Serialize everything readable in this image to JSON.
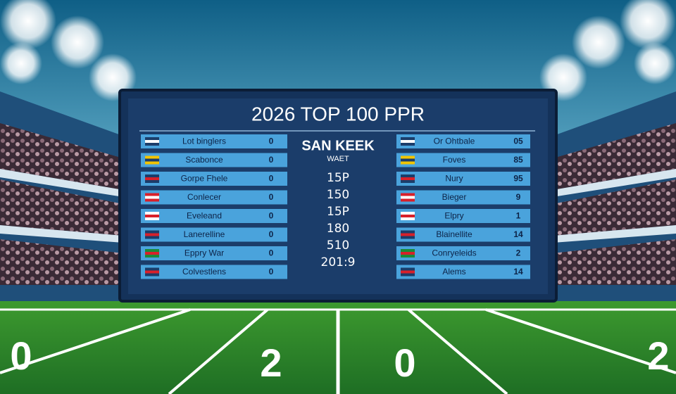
{
  "scoreboard": {
    "title": "2026 TOP 100 PPR",
    "left_rows": [
      {
        "name": "Lot binglers",
        "score": "0"
      },
      {
        "name": "Scabonce",
        "score": "0"
      },
      {
        "name": "Gorpe Fhele",
        "score": "0"
      },
      {
        "name": "Conlecer",
        "score": "0"
      },
      {
        "name": "Eveleand",
        "score": "0"
      },
      {
        "name": "Lanerelline",
        "score": "0"
      },
      {
        "name": "Eppry War",
        "score": "0"
      },
      {
        "name": "Colvestlens",
        "score": "0"
      }
    ],
    "center": {
      "heading": "SAN KEEK",
      "subheading": "WAET",
      "lines": [
        "15P",
        "150",
        "15P",
        "180",
        "510",
        "201:9"
      ]
    },
    "right_rows": [
      {
        "name": "Or Ohtbale",
        "score": "05"
      },
      {
        "name": "Foves",
        "score": "85"
      },
      {
        "name": "Nury",
        "score": "95"
      },
      {
        "name": "Bieger",
        "score": "9"
      },
      {
        "name": "Elpry",
        "score": "1"
      },
      {
        "name": "Blainellite",
        "score": "14"
      },
      {
        "name": "Conryeleids",
        "score": "2"
      },
      {
        "name": "Alems",
        "score": "14"
      }
    ]
  },
  "field": {
    "yard_numbers": [
      "0",
      "2",
      "0",
      "2"
    ]
  }
}
